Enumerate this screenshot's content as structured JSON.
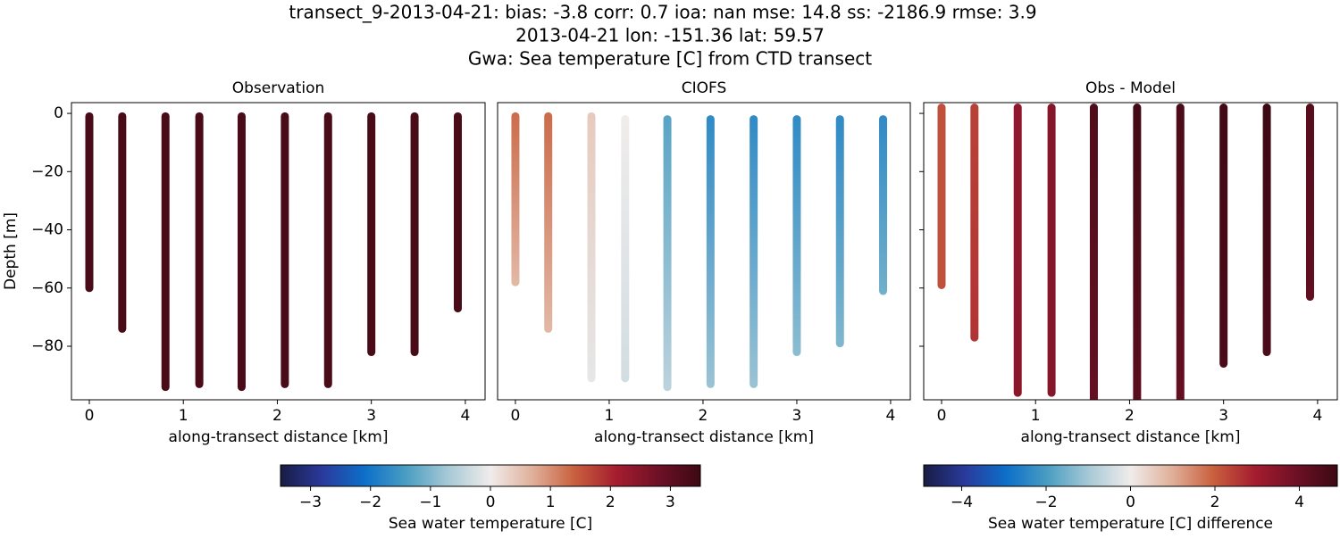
{
  "suptitle": [
    "transect_9-2013-04-21: bias: -3.8  corr: 0.7  ioa: nan  mse: 14.8  ss: -2186.9  rmse: 3.9",
    "2013-04-21 lon: -151.36 lat: 59.57",
    "Gwa: Sea temperature [C] from CTD transect"
  ],
  "colormap": [
    "#181c43",
    "#2a3a9c",
    "#0d6fc9",
    "#4a9ec2",
    "#a8c9d6",
    "#f0eceb",
    "#e0b09a",
    "#c9603e",
    "#a51d2f",
    "#6e1026",
    "#3c0912"
  ],
  "chart_data": [
    {
      "type": "profile",
      "title": "Observation",
      "xlabel": "along-transect distance [km]",
      "ylabel": "Depth [m]",
      "x": [
        0,
        0.35,
        0.81,
        1.17,
        1.62,
        2.08,
        2.54,
        3.0,
        3.46,
        3.92
      ],
      "depth_top": [
        -1,
        -1,
        -1,
        -1,
        -1,
        -1,
        -1,
        -1,
        -1,
        -1
      ],
      "depth_bottom": [
        -60,
        -74,
        -94,
        -93,
        -94,
        -93,
        -93,
        -82,
        -82,
        -67
      ],
      "values_top": [
        3.3,
        3.3,
        3.3,
        3.3,
        3.3,
        3.3,
        3.3,
        3.3,
        3.3,
        3.3
      ],
      "values_bottom": [
        3.3,
        3.3,
        3.3,
        3.3,
        3.3,
        3.3,
        3.3,
        3.3,
        3.3,
        3.3
      ],
      "vlim": [
        -3.5,
        3.5
      ],
      "xlim": [
        -0.19,
        4.21
      ],
      "ylim": [
        -98.4,
        3.7
      ],
      "xticks": [
        0,
        1,
        2,
        3,
        4
      ],
      "yticks": [
        0,
        {
          "value": -20,
          "label": "−20"
        },
        {
          "value": -40,
          "label": "−40"
        },
        {
          "value": -60,
          "label": "−60"
        },
        {
          "value": -80,
          "label": "−80"
        }
      ]
    },
    {
      "type": "profile",
      "title": "CIOFS",
      "xlabel": "along-transect distance [km]",
      "x": [
        0,
        0.35,
        0.81,
        1.17,
        1.62,
        2.08,
        2.54,
        3.0,
        3.46,
        3.92
      ],
      "depth_top": [
        -1,
        -1,
        -1,
        -2,
        -2,
        -2,
        -2,
        -2,
        -2,
        -2
      ],
      "depth_bottom": [
        -58,
        -74,
        -91,
        -91,
        -94,
        -93,
        -93,
        -82,
        -79,
        -61
      ],
      "values_top": [
        1.3,
        1.3,
        0.4,
        0,
        -1.3,
        -1.7,
        -1.7,
        -1.7,
        -1.7,
        -1.7
      ],
      "values_bottom": [
        0.6,
        0.6,
        -0.1,
        -0.3,
        -0.5,
        -0.8,
        -0.8,
        -0.9,
        -1.0,
        -1.1
      ],
      "vlim": [
        -3.5,
        3.5
      ],
      "xlim": [
        -0.19,
        4.21
      ],
      "ylim": [
        -98.4,
        3.7
      ],
      "xticks": [
        0,
        1,
        2,
        3,
        4
      ]
    },
    {
      "type": "profile",
      "title": "Obs - Model",
      "xlabel": "along-transect distance [km]",
      "x": [
        0,
        0.35,
        0.81,
        1.17,
        1.62,
        2.08,
        2.54,
        3.0,
        3.46,
        3.92
      ],
      "depth_top": [
        2,
        2,
        2,
        2,
        2,
        2,
        2,
        2,
        2,
        2
      ],
      "depth_bottom": [
        -59,
        -77,
        -96,
        -96,
        -98,
        -98,
        -98,
        -86,
        -82,
        -63
      ],
      "values_top": [
        2.2,
        2.4,
        3.3,
        3.5,
        4.5,
        4.8,
        4.6,
        4.8,
        4.9,
        4.4
      ],
      "values_bottom": [
        2.2,
        2.6,
        3.4,
        3.5,
        4.1,
        4.3,
        4.1,
        4.6,
        4.6,
        4.2
      ],
      "vlim": [
        -4.9,
        4.9
      ],
      "xlim": [
        -0.19,
        4.21
      ],
      "ylim": [
        -98.4,
        3.7
      ],
      "xticks": [
        0,
        1,
        2,
        3,
        4
      ],
      "yticks": [
        0,
        -20,
        -40,
        -60,
        -80
      ]
    }
  ],
  "colorbars": [
    {
      "label": "Sea water temperature [C]",
      "lim": [
        -3.5,
        3.5
      ],
      "ticks": [
        {
          "value": -3,
          "label": "−3"
        },
        {
          "value": -2,
          "label": "−2"
        },
        {
          "value": -1,
          "label": "−1"
        },
        0,
        1,
        2,
        3
      ]
    },
    {
      "label": "Sea water temperature [C] difference",
      "lim": [
        -4.9,
        4.9
      ],
      "ticks": [
        {
          "value": -4,
          "label": "−4"
        },
        {
          "value": -2,
          "label": "−2"
        },
        0,
        2,
        4
      ]
    }
  ]
}
